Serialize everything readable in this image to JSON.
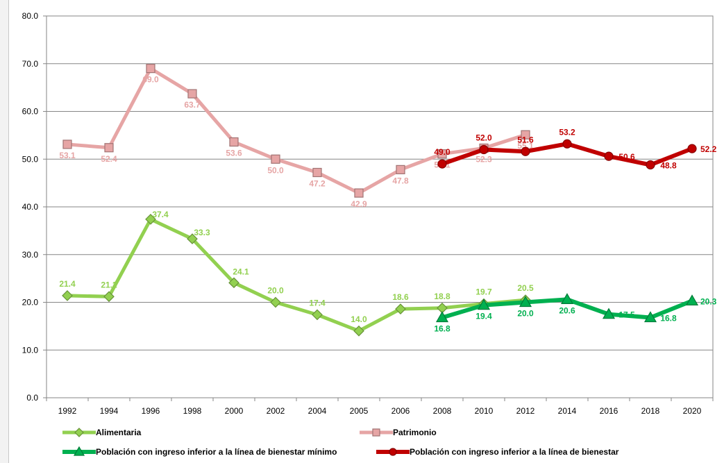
{
  "chart_data": {
    "type": "line",
    "ylim": [
      0,
      80
    ],
    "yticks": [
      "0.0",
      "10.0",
      "20.0",
      "30.0",
      "40.0",
      "50.0",
      "60.0",
      "70.0",
      "80.0"
    ],
    "categories": [
      "1992",
      "1994",
      "1996",
      "1998",
      "2000",
      "2002",
      "2004",
      "2005",
      "2006",
      "2008",
      "2010",
      "2012",
      "2014",
      "2016",
      "2018",
      "2020"
    ],
    "grid": true,
    "legend_position": "bottom",
    "series": [
      {
        "name": "Alimentaria",
        "color": "#92d050",
        "marker": "diamond",
        "values": [
          21.4,
          21.2,
          37.4,
          33.3,
          24.1,
          20.0,
          17.4,
          14.0,
          18.6,
          18.8,
          19.7,
          20.5,
          null,
          null,
          null,
          null
        ],
        "labels": [
          "21.4",
          "21.2",
          "37.4",
          "33.3",
          "24.1",
          "20.0",
          "17.4",
          "14.0",
          "18.6",
          "18.8",
          "19.7",
          "20.5",
          null,
          null,
          null,
          null
        ],
        "label_pos": "above"
      },
      {
        "name": "Patrimonio",
        "color": "#e6a5a5",
        "marker": "square",
        "values": [
          53.1,
          52.4,
          69.0,
          63.7,
          53.6,
          50.0,
          47.2,
          42.9,
          47.8,
          51.1,
          52.3,
          55.1,
          null,
          null,
          null,
          null
        ],
        "labels": [
          "53.1",
          "52.4",
          "69.0",
          "63.7",
          "53.6",
          "50.0",
          "47.2",
          "42.9",
          "47.8",
          "51.1",
          "52.3",
          "55.1",
          null,
          null,
          null,
          null
        ],
        "label_pos": "below"
      },
      {
        "name": "Población con ingreso inferior a la línea de bienestar mínimo",
        "color": "#00b050",
        "marker": "triangle",
        "values": [
          null,
          null,
          null,
          null,
          null,
          null,
          null,
          null,
          null,
          16.8,
          19.4,
          20.0,
          20.6,
          17.5,
          16.8,
          20.3
        ],
        "labels": [
          null,
          null,
          null,
          null,
          null,
          null,
          null,
          null,
          null,
          "16.8",
          "19.4",
          "20.0",
          "20.6",
          "17.5",
          "16.8",
          "20.3"
        ],
        "label_pos": "below"
      },
      {
        "name": "Población con ingreso inferior a la línea de bienestar",
        "color": "#c00000",
        "marker": "circle",
        "values": [
          null,
          null,
          null,
          null,
          null,
          null,
          null,
          null,
          null,
          49.0,
          52.0,
          51.6,
          53.2,
          50.6,
          48.8,
          52.2
        ],
        "labels": [
          null,
          null,
          null,
          null,
          null,
          null,
          null,
          null,
          null,
          "49.0",
          "52.0",
          "51.6",
          "53.2",
          "50.6",
          "48.8",
          "52.2"
        ],
        "label_pos": "above"
      }
    ]
  }
}
